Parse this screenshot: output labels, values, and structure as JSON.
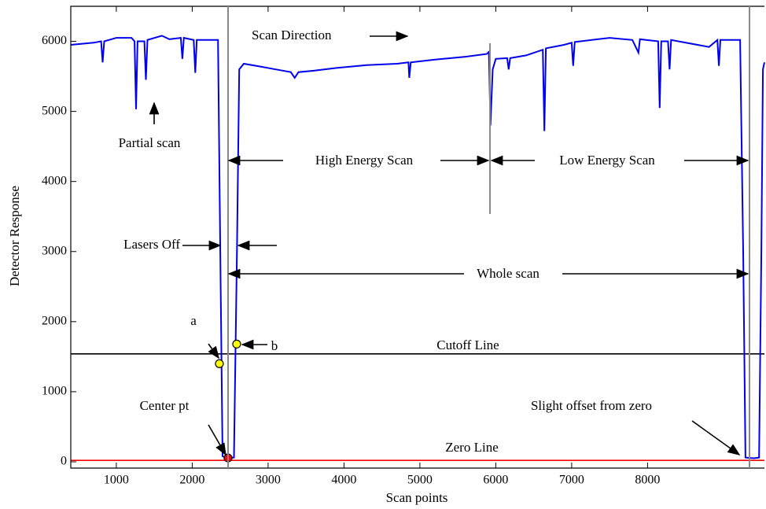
{
  "chart_data": {
    "type": "line",
    "xlabel": "Scan points",
    "ylabel": "Detector Response",
    "xlim": [
      400,
      9540
    ],
    "ylim": [
      -90,
      6500
    ],
    "xticks": [
      1000,
      2000,
      3000,
      4000,
      5000,
      6000,
      7000,
      8000
    ],
    "yticks": [
      0,
      1000,
      2000,
      3000,
      4000,
      5000,
      6000
    ],
    "x": [
      400,
      700,
      800,
      820,
      840,
      1000,
      1200,
      1240,
      1260,
      1280,
      1370,
      1390,
      1410,
      1600,
      1700,
      1850,
      1870,
      1890,
      2020,
      2040,
      2060,
      2340,
      2370,
      2400,
      2450,
      2550,
      2590,
      2620,
      2680,
      2900,
      3100,
      3300,
      3350,
      3400,
      3600,
      3900,
      4300,
      4700,
      4850,
      4860,
      4880,
      5200,
      5600,
      5880,
      5910,
      5930,
      5960,
      6000,
      6150,
      6170,
      6190,
      6400,
      6620,
      6640,
      6660,
      6900,
      7000,
      7020,
      7040,
      7500,
      7800,
      7880,
      7900,
      8140,
      8160,
      8180,
      8270,
      8290,
      8310,
      8810,
      8920,
      8940,
      8960,
      9220,
      9260,
      9290,
      9400,
      9470,
      9500,
      9520,
      9540
    ],
    "series": [
      {
        "color": "#0000ee",
        "values": [
          5950,
          5980,
          6000,
          5700,
          6000,
          6050,
          6050,
          6000,
          5030,
          6000,
          6000,
          5450,
          6020,
          6080,
          6030,
          6050,
          5750,
          6050,
          6020,
          5550,
          6020,
          6020,
          3000,
          80,
          50,
          60,
          3000,
          5600,
          5680,
          5640,
          5600,
          5560,
          5480,
          5560,
          5580,
          5620,
          5660,
          5680,
          5700,
          5480,
          5700,
          5740,
          5780,
          5820,
          5850,
          4800,
          5600,
          5750,
          5760,
          5600,
          5760,
          5800,
          5880,
          4720,
          5900,
          5950,
          5980,
          5650,
          5990,
          6050,
          6020,
          5840,
          6030,
          6000,
          5050,
          6000,
          6000,
          5600,
          6020,
          5920,
          6020,
          5650,
          6020,
          6020,
          3000,
          60,
          50,
          60,
          3000,
          5600,
          5700
        ]
      }
    ],
    "hlines": [
      {
        "value": 1540,
        "color": "#000000"
      },
      {
        "value": 20,
        "color": "#ff0000"
      }
    ],
    "points": [
      {
        "x": 2358,
        "y": 1400,
        "color": "#ffff00"
      },
      {
        "x": 2586,
        "y": 1680,
        "color": "#ffff00"
      },
      {
        "x": 2472,
        "y": 55,
        "color": "#ff0000"
      }
    ],
    "annotations": [
      "Scan Direction",
      "Partial scan",
      "High Energy Scan",
      "Low Energy Scan",
      "Lasers Off",
      "Whole scan",
      "a",
      "b",
      "Cutoff Line",
      "Center pt",
      "Slight offset from zero",
      "Zero Line"
    ]
  }
}
